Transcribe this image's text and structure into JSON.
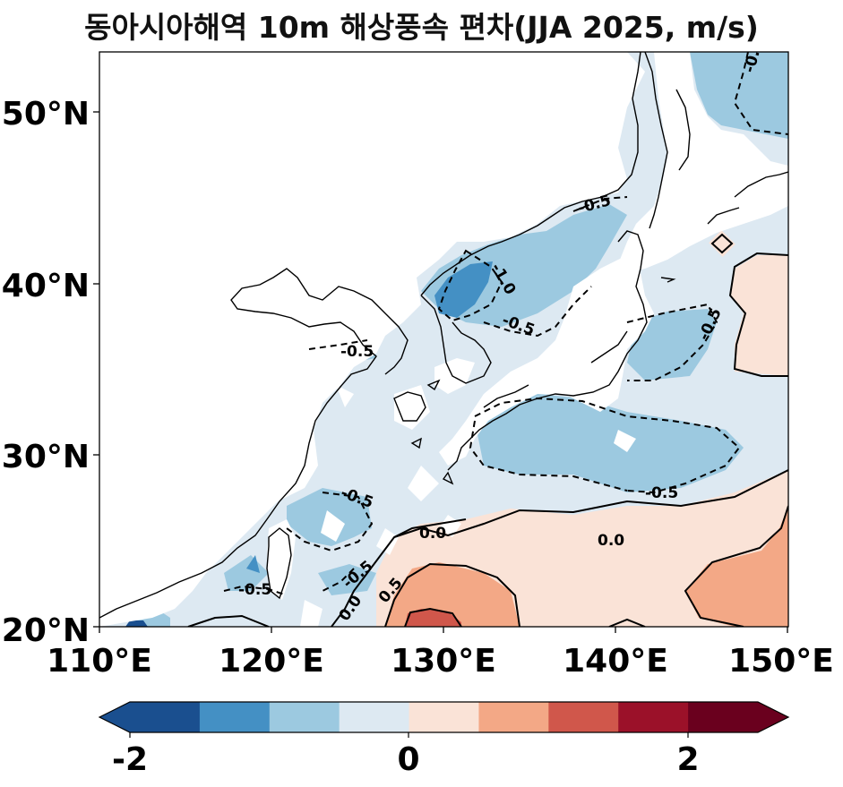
{
  "title": "동아시아해역 10m 해상풍속 편차(JJA 2025, m/s)",
  "map": {
    "lon_range": [
      110,
      150
    ],
    "lat_range": [
      20,
      53.5
    ],
    "lon_ticks": [
      "110°E",
      "120°E",
      "130°E",
      "140°E",
      "150°E"
    ],
    "lat_ticks": [
      "20°N",
      "30°N",
      "40°N",
      "50°N"
    ],
    "fill_type": "filled contour of wind speed anomaly",
    "contour_labels": [
      "-0.5",
      "-0.5",
      "-1.0",
      "-0.5",
      "-0.5",
      "-0.5",
      "-0.5",
      "-0.5",
      "-0.5",
      "-0.5",
      "0.0",
      "0.0",
      "0.0",
      "0.5",
      "-0.5"
    ]
  },
  "colorbar": {
    "ticks": [
      "-2",
      "0",
      "2"
    ],
    "colors": [
      "#1a4f8f",
      "#4490c4",
      "#9cc9e0",
      "#dde9f2",
      "#fae3d7",
      "#f3a886",
      "#d0574b",
      "#9b1129",
      "#6a001e"
    ],
    "extend": "both"
  }
}
